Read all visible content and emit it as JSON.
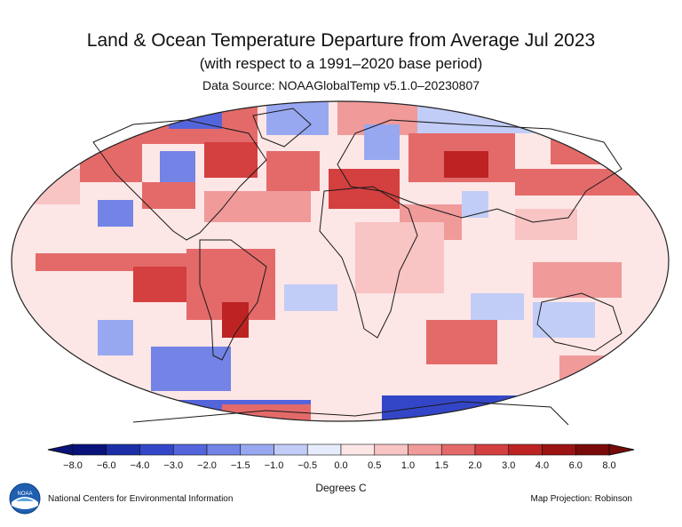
{
  "title": "Land & Ocean Temperature Departure from Average Jul 2023",
  "subtitle": "(with respect to a 1991–2020 base period)",
  "source": "Data Source: NOAAGlobalTemp v5.1.0–20230807",
  "legend": {
    "units": "Degrees C",
    "ticks": [
      "−8.0",
      "−6.0",
      "−4.0",
      "−3.0",
      "−2.0",
      "−1.5",
      "−1.0",
      "−0.5",
      "0.0",
      "0.5",
      "1.0",
      "1.5",
      "2.0",
      "3.0",
      "4.0",
      "6.0",
      "8.0"
    ],
    "colors": [
      "#08127a",
      "#1b2ea8",
      "#3446c8",
      "#5465dc",
      "#7384e6",
      "#98a8f0",
      "#c1cdf6",
      "#e6ecfb",
      "#fde6e6",
      "#f8c4c4",
      "#f09a9a",
      "#e46a6a",
      "#d43f3f",
      "#bd2323",
      "#9c1313",
      "#7a0909"
    ],
    "extend": "both"
  },
  "credit": "National Centers for Environmental Information",
  "projection": "Map Projection: Robinson",
  "logo_text": "NOAA",
  "colors": {
    "land_outline": "#1a1a1a",
    "globe_outline": "#222222",
    "neutral": "#fde6e6"
  }
}
